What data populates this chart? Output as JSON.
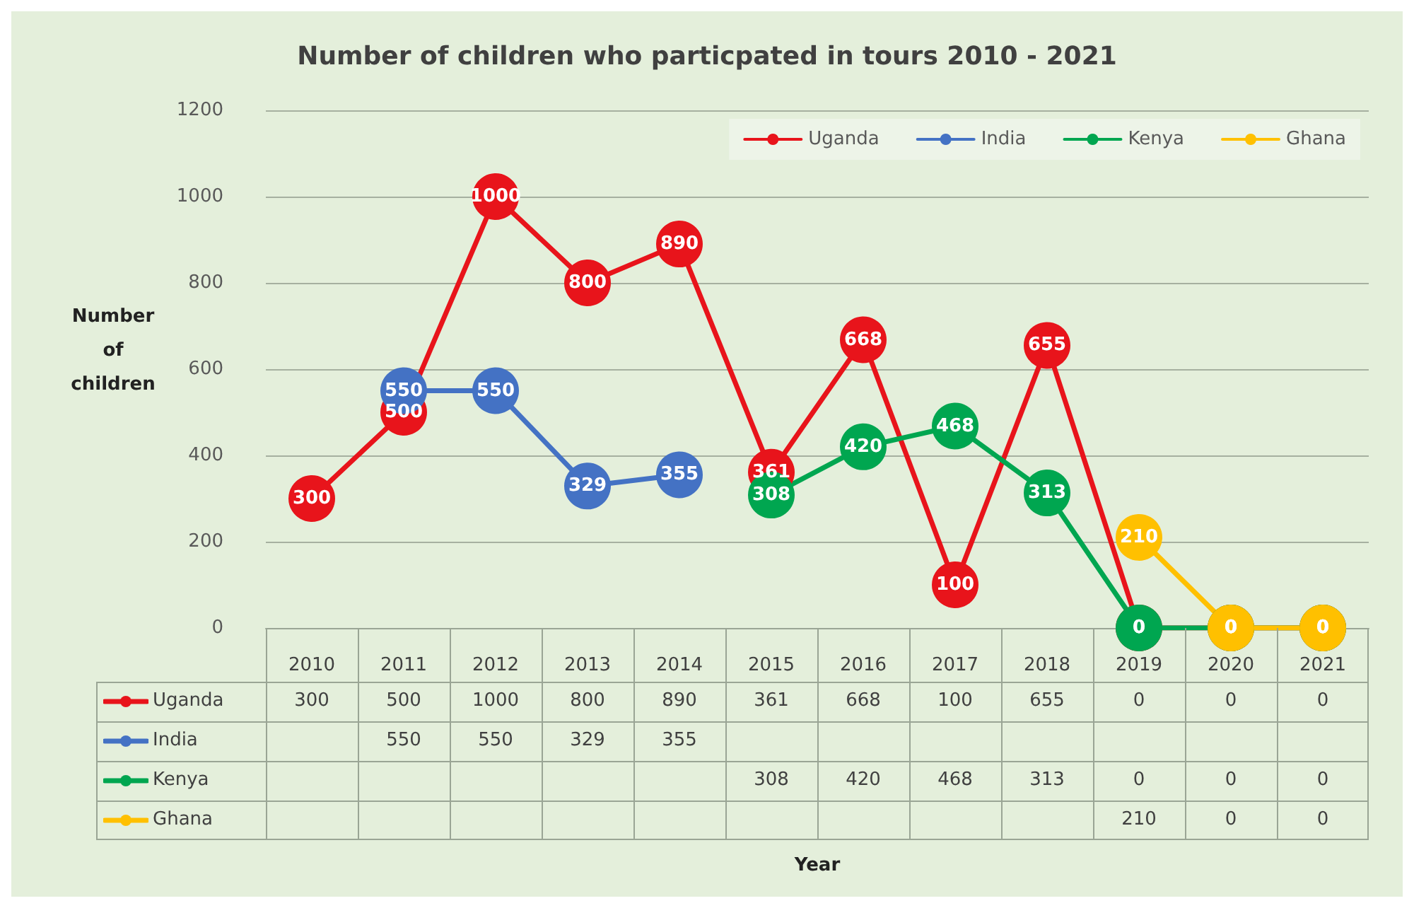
{
  "chart_data": [
    {
      "type": "line",
      "title": "Number of children who particpated in tours 2010 - 2021",
      "ylabel": "Number of children",
      "annotations": [
        "Year"
      ],
      "categories": [
        "2010",
        "2011",
        "2012",
        "2013",
        "2014",
        "2015",
        "2016",
        "2017",
        "2018",
        "2019",
        "2020",
        "2021"
      ],
      "series": [
        {
          "name": "Uganda",
          "color": "#e8141b",
          "values": [
            300,
            500,
            1000,
            800,
            890,
            361,
            668,
            100,
            655,
            0,
            0,
            0
          ],
          "value_labels": [
            "300",
            "500",
            "1000",
            "800",
            "890",
            "361",
            "668",
            "100",
            "655",
            "0",
            "0",
            "0"
          ]
        },
        {
          "name": "India",
          "color": "#4472c4",
          "values": [
            null,
            550,
            550,
            329,
            355,
            null,
            null,
            null,
            null,
            null,
            null,
            null
          ],
          "value_labels": [
            null,
            "550",
            "550",
            "329",
            "355",
            null,
            null,
            null,
            null,
            null,
            null,
            null
          ]
        },
        {
          "name": "Kenya",
          "color": "#00a650",
          "values": [
            null,
            null,
            null,
            null,
            null,
            308,
            420,
            468,
            313,
            0,
            0,
            0
          ],
          "value_labels": [
            null,
            null,
            null,
            null,
            null,
            "308",
            "420",
            "468",
            "313",
            "0",
            "0",
            "0"
          ]
        },
        {
          "name": "Ghana",
          "color": "#ffc000",
          "values": [
            null,
            null,
            null,
            null,
            null,
            null,
            null,
            null,
            null,
            210,
            0,
            0
          ],
          "value_labels": [
            null,
            null,
            null,
            null,
            null,
            null,
            null,
            null,
            null,
            "210",
            "0",
            "0"
          ]
        }
      ],
      "ylim": [
        0,
        1200
      ],
      "yticks": [
        0,
        200,
        400,
        600,
        800,
        1000,
        1200
      ],
      "grid": "y",
      "legend": "top right",
      "marker": "circle",
      "data_labels": true
    },
    {
      "type": "heatmap",
      "data_labels": true,
      "categories": [
        null,
        null,
        null,
        null,
        null,
        null,
        null,
        null,
        null,
        null,
        null,
        null
      ],
      "y_categories": [
        "Uganda",
        "India",
        "Kenya",
        "Ghana"
      ],
      "cells": [
        [
          300,
          500,
          1000,
          800,
          890,
          361,
          668,
          100,
          655,
          0,
          0,
          0
        ],
        [
          null,
          550,
          550,
          329,
          355,
          null,
          null,
          null,
          null,
          null,
          null,
          null
        ],
        [
          null,
          null,
          null,
          null,
          null,
          308,
          420,
          468,
          313,
          0,
          0,
          0
        ],
        [
          null,
          null,
          null,
          null,
          null,
          null,
          null,
          null,
          null,
          210,
          0,
          0
        ]
      ]
    }
  ]
}
